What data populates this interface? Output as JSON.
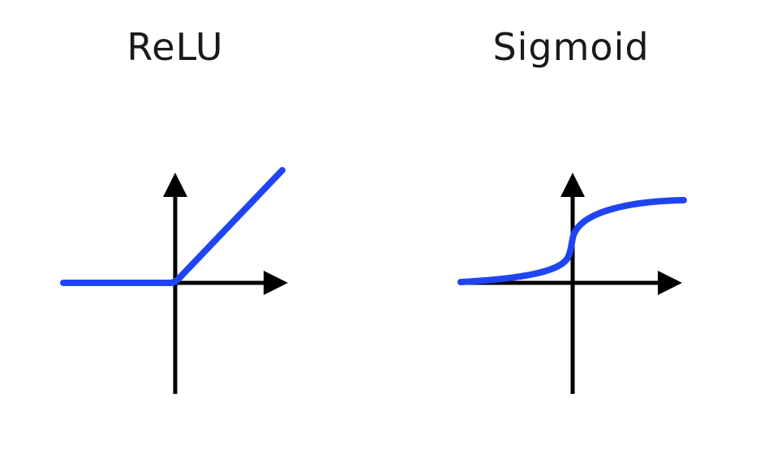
{
  "panels": [
    {
      "title": "ReLU"
    },
    {
      "title": "Sigmoid"
    }
  ],
  "colors": {
    "curve": "#1f45f2",
    "axes": "#000000",
    "title": "#1a1a1a",
    "background": "#ffffff"
  }
}
